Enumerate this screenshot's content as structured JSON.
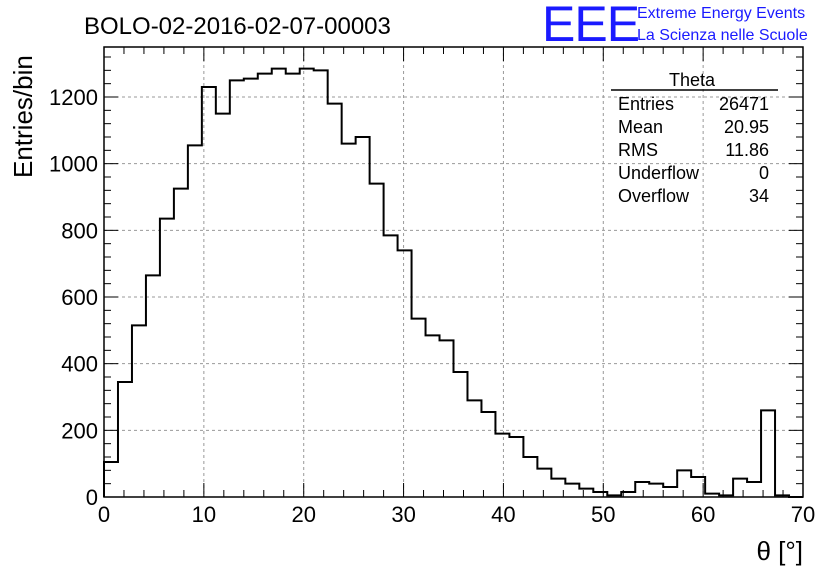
{
  "title": "BOLO-02-2016-02-07-00003",
  "logo": {
    "mark": "EEE",
    "line1": "Extreme Energy Events",
    "line2": "La Scienza nelle Scuole",
    "color": "#1a1aff"
  },
  "stats": {
    "name": "Theta",
    "rows": [
      {
        "label": "Entries",
        "value": "26471"
      },
      {
        "label": "Mean",
        "value": "20.95"
      },
      {
        "label": "RMS",
        "value": "11.86"
      },
      {
        "label": "Underflow",
        "value": "0"
      },
      {
        "label": "Overflow",
        "value": "34"
      }
    ]
  },
  "chart_data": {
    "type": "histogram",
    "title": "BOLO-02-2016-02-07-00003",
    "xlabel": "θ [°]",
    "ylabel": "Entries/bin",
    "xlim": [
      0,
      70
    ],
    "ylim": [
      0,
      1350
    ],
    "bin_width": 1.4,
    "x_ticks": [
      0,
      10,
      20,
      30,
      40,
      50,
      60,
      70
    ],
    "y_ticks": [
      0,
      200,
      400,
      600,
      800,
      1000,
      1200
    ],
    "grid": true,
    "legend": "top-right",
    "values": [
      105,
      345,
      515,
      665,
      835,
      925,
      1055,
      1230,
      1150,
      1250,
      1255,
      1270,
      1285,
      1270,
      1285,
      1280,
      1180,
      1060,
      1080,
      940,
      785,
      740,
      535,
      485,
      470,
      375,
      290,
      255,
      190,
      180,
      120,
      85,
      55,
      40,
      25,
      15,
      5,
      15,
      45,
      40,
      30,
      80,
      60,
      10,
      5,
      55,
      45,
      260,
      5,
      0
    ]
  }
}
